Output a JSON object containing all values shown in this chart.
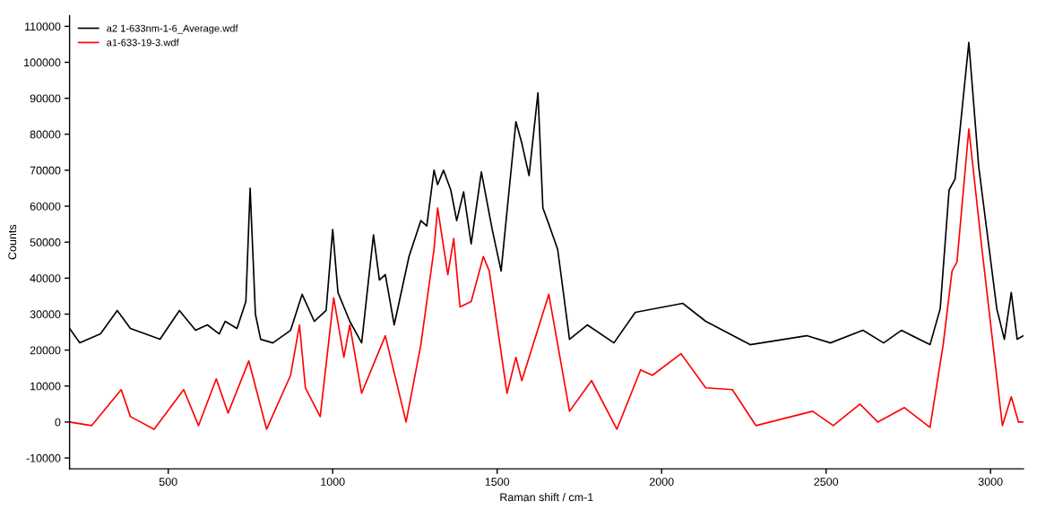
{
  "chart_data": {
    "type": "line",
    "xlabel": "Raman shift / cm-1",
    "ylabel": "Counts",
    "legend": "top left",
    "grid": false,
    "xlim": [
      200,
      3100
    ],
    "ylim": [
      -13000,
      113000
    ],
    "xticks": [
      500,
      1000,
      1500,
      2000,
      2500,
      3000
    ],
    "yticks": [
      -10000,
      0,
      10000,
      20000,
      30000,
      40000,
      50000,
      60000,
      70000,
      80000,
      90000,
      100000,
      110000
    ],
    "series": [
      {
        "name": "a2 1-633nm-1-6_Average.wdf",
        "color": "#000000",
        "x": [
          200,
          231,
          294,
          345,
          385,
          475,
          534,
          583,
          619,
          655,
          673,
          709,
          736,
          749,
          765,
          781,
          818,
          872,
          907,
          944,
          980,
          1000,
          1016,
          1052,
          1088,
          1124,
          1142,
          1160,
          1187,
          1232,
          1268,
          1286,
          1308,
          1319,
          1337,
          1359,
          1377,
          1398,
          1421,
          1452,
          1485,
          1512,
          1557,
          1575,
          1597,
          1624,
          1639,
          1657,
          1684,
          1720,
          1774,
          1855,
          1920,
          2064,
          2134,
          2269,
          2441,
          2513,
          2612,
          2675,
          2729,
          2816,
          2847,
          2874,
          2892,
          2934,
          2964,
          3019,
          3042,
          3063,
          3081,
          3100
        ],
        "values": [
          26000,
          22000,
          24500,
          31000,
          26000,
          23000,
          31000,
          25500,
          27000,
          24500,
          28000,
          26000,
          33500,
          65000,
          30000,
          23000,
          22000,
          25500,
          35500,
          28000,
          31000,
          53500,
          36000,
          28000,
          22000,
          52000,
          39500,
          41000,
          27000,
          46000,
          56000,
          54500,
          70000,
          66000,
          70000,
          64500,
          56000,
          64000,
          49500,
          69500,
          53500,
          42000,
          83500,
          77500,
          68500,
          91500,
          59500,
          55000,
          48000,
          23000,
          27000,
          22000,
          30500,
          33000,
          28000,
          21500,
          24000,
          22000,
          25500,
          22000,
          25500,
          21500,
          31500,
          64500,
          67500,
          105500,
          71000,
          31500,
          23000,
          36000,
          23000,
          24000
        ]
      },
      {
        "name": "a1-633-19-3.wdf",
        "color": "#ff0000",
        "x": [
          200,
          267,
          357,
          385,
          457,
          547,
          592,
          646,
          682,
          745,
          799,
          872,
          899,
          917,
          962,
          1003,
          1034,
          1052,
          1088,
          1133,
          1160,
          1223,
          1268,
          1308,
          1319,
          1350,
          1368,
          1387,
          1421,
          1458,
          1476,
          1530,
          1557,
          1575,
          1657,
          1720,
          1787,
          1864,
          1936,
          1972,
          2059,
          2134,
          2215,
          2287,
          2459,
          2522,
          2603,
          2657,
          2738,
          2816,
          2856,
          2883,
          2898,
          2934,
          2974,
          3036,
          3063,
          3085,
          3100
        ],
        "values": [
          0,
          -1000,
          9000,
          1500,
          -2000,
          9000,
          -1000,
          12000,
          2500,
          17000,
          -2000,
          13000,
          27000,
          9500,
          1500,
          34500,
          18000,
          27000,
          8000,
          18000,
          24000,
          0,
          21500,
          48000,
          59500,
          41000,
          51000,
          32000,
          33500,
          46000,
          42000,
          8000,
          18000,
          11500,
          35500,
          3000,
          11500,
          -2000,
          14500,
          13000,
          19000,
          9500,
          9000,
          -1000,
          3000,
          -1000,
          5000,
          0,
          4000,
          -1500,
          21500,
          42000,
          44500,
          81500,
          48000,
          -1000,
          7000,
          0,
          0
        ]
      }
    ]
  }
}
